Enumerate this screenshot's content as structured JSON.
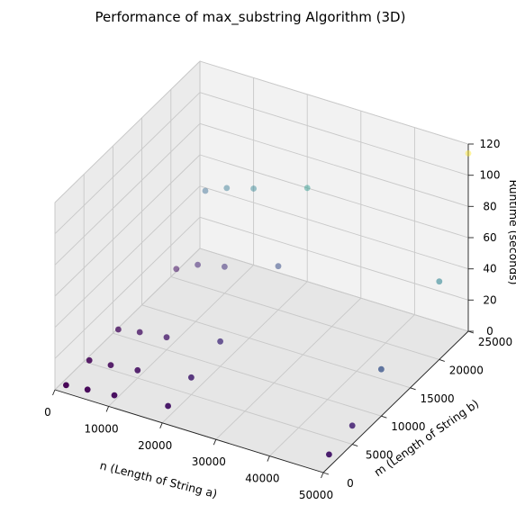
{
  "chart_data": {
    "type": "scatter3d",
    "title": "Performance of max_substring Algorithm (3D)",
    "xlabel": "n (Length of String a)",
    "ylabel": "m (Length of String b)",
    "zlabel": "Runtime (seconds)",
    "xlim": [
      0,
      50000
    ],
    "ylim": [
      0,
      25000
    ],
    "zlim": [
      0,
      120
    ],
    "x_ticks": [
      "0",
      "10000",
      "20000",
      "30000",
      "40000",
      "50000"
    ],
    "y_ticks": [
      "0",
      "5000",
      "10000",
      "15000",
      "20000",
      "25000"
    ],
    "z_ticks": [
      "0",
      "20",
      "40",
      "60",
      "80",
      "100",
      "120"
    ],
    "colormap": "viridis",
    "grid": true,
    "points": [
      {
        "x": 1000,
        "y": 1000,
        "z": 0.4
      },
      {
        "x": 5000,
        "y": 1000,
        "z": 1.8
      },
      {
        "x": 10000,
        "y": 1000,
        "z": 3.5
      },
      {
        "x": 20000,
        "y": 1000,
        "z": 7.2
      },
      {
        "x": 50000,
        "y": 1000,
        "z": 8
      },
      {
        "x": 1000,
        "y": 5000,
        "z": 1.8
      },
      {
        "x": 5000,
        "y": 5000,
        "z": 3
      },
      {
        "x": 10000,
        "y": 5000,
        "z": 5
      },
      {
        "x": 20000,
        "y": 5000,
        "z": 11
      },
      {
        "x": 50000,
        "y": 5000,
        "z": 12
      },
      {
        "x": 1000,
        "y": 10000,
        "z": 3.5
      },
      {
        "x": 5000,
        "y": 10000,
        "z": 6
      },
      {
        "x": 10000,
        "y": 10000,
        "z": 8
      },
      {
        "x": 20000,
        "y": 10000,
        "z": 16
      },
      {
        "x": 50000,
        "y": 10000,
        "z": 30
      },
      {
        "x": 1000,
        "y": 20000,
        "z": 6
      },
      {
        "x": 5000,
        "y": 20000,
        "z": 13
      },
      {
        "x": 10000,
        "y": 20000,
        "z": 17
      },
      {
        "x": 20000,
        "y": 20000,
        "z": 28
      },
      {
        "x": 50000,
        "y": 20000,
        "z": 50
      },
      {
        "x": 1000,
        "y": 25000,
        "z": 38
      },
      {
        "x": 5000,
        "y": 25000,
        "z": 44
      },
      {
        "x": 10000,
        "y": 25000,
        "z": 49
      },
      {
        "x": 20000,
        "y": 25000,
        "z": 60
      },
      {
        "x": 50000,
        "y": 25000,
        "z": 114
      }
    ]
  }
}
